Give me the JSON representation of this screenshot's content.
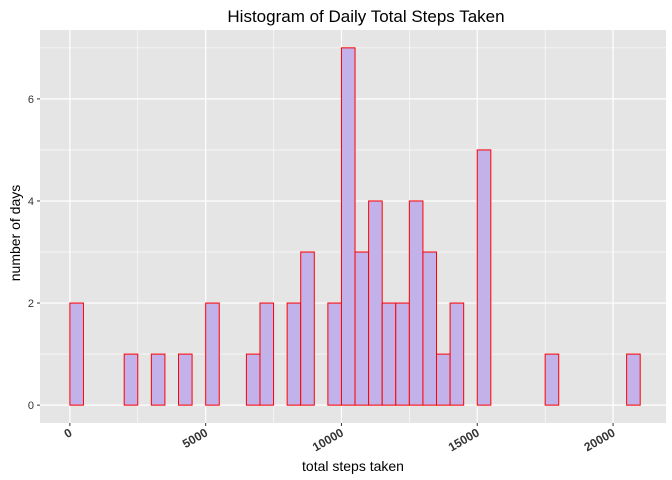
{
  "chart_data": {
    "type": "bar",
    "title": "Histogram of Daily Total Steps Taken",
    "xlabel": "total steps taken",
    "ylabel": "number of days",
    "xlim": [
      -1100,
      21950
    ],
    "ylim": [
      -0.35,
      7.35
    ],
    "x_ticks": [
      0,
      5000,
      10000,
      15000,
      20000
    ],
    "x_tick_labels": [
      "0",
      "5000",
      "10000",
      "15000",
      "20000"
    ],
    "y_ticks": [
      0,
      2,
      4,
      6
    ],
    "y_tick_labels": [
      "0",
      "2",
      "4",
      "6"
    ],
    "bin_width": 500,
    "bin_start": 0,
    "counts": [
      2,
      0,
      0,
      0,
      1,
      0,
      1,
      0,
      1,
      0,
      2,
      0,
      0,
      1,
      2,
      0,
      2,
      3,
      0,
      2,
      7,
      3,
      4,
      2,
      2,
      4,
      3,
      1,
      2,
      0,
      5,
      0,
      0,
      0,
      0,
      1,
      0,
      0,
      0,
      0,
      0,
      1,
      0
    ],
    "colors": {
      "panel_background": "#e5e5e5",
      "gridline": "#ffffff",
      "bar_fill": "#c3b1e9",
      "bar_outline": "#ff0000"
    },
    "grid": true
  }
}
